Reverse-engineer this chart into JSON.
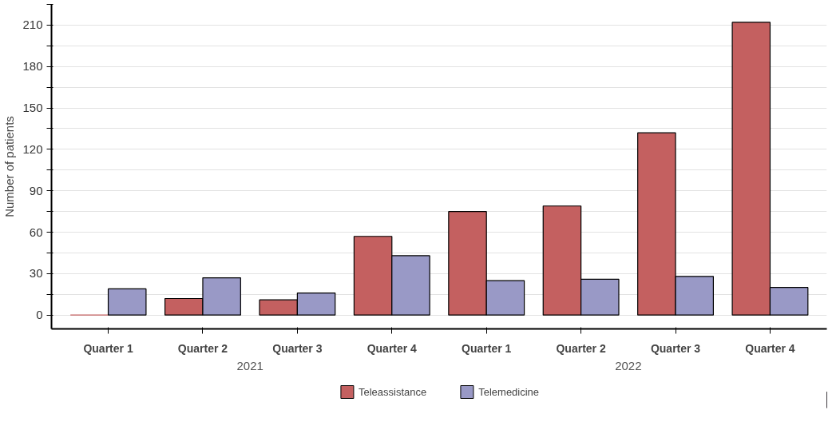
{
  "chart_data": {
    "type": "bar",
    "ylabel": "Number of patients",
    "categories": [
      "Quarter 1",
      "Quarter 2",
      "Quarter 3",
      "Quarter 4",
      "Quarter 1",
      "Quarter 2",
      "Quarter 3",
      "Quarter 4"
    ],
    "annotations": [
      "2021",
      "2022"
    ],
    "series": [
      {
        "name": "Teleassistance",
        "color": "#c46060",
        "values": [
          0,
          12,
          11,
          57,
          75,
          79,
          132,
          212
        ]
      },
      {
        "name": "Telemedicine",
        "color": "#9999c6",
        "values": [
          19,
          27,
          16,
          43,
          25,
          26,
          28,
          20
        ]
      }
    ],
    "ylim": [
      -10,
      225
    ],
    "yticks": [
      0,
      {
        "value": 15,
        "label": null
      },
      30,
      {
        "value": 45,
        "label": null
      },
      60,
      {
        "value": 75,
        "label": null
      },
      90,
      {
        "value": 105,
        "label": null
      },
      120,
      {
        "value": 135,
        "label": null
      },
      150,
      {
        "value": 165,
        "label": null
      },
      180,
      {
        "value": 195,
        "label": null
      },
      210,
      {
        "value": 225,
        "label": null
      }
    ],
    "grid": "y",
    "legend": "bottom"
  }
}
